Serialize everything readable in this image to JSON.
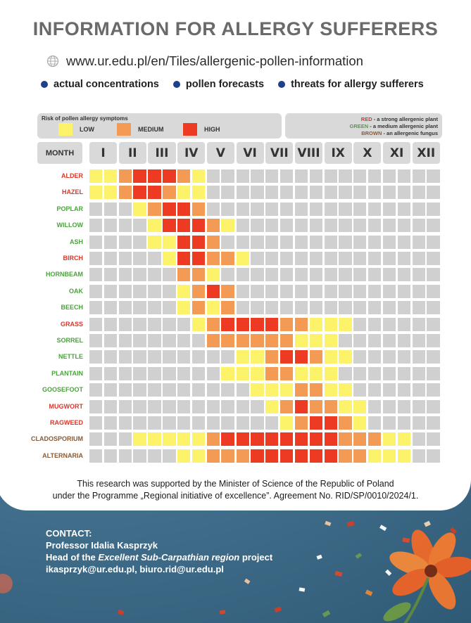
{
  "title": "INFORMATION FOR ALLERGY SUFFERERS",
  "url": "www.ur.edu.pl/en/Tiles/allergenic-pollen-information",
  "bullets": [
    "actual concentrations",
    "pollen forecasts",
    "threats for allergy sufferers"
  ],
  "legend": {
    "title": "Risk of pollen allergy symptoms",
    "low": "LOW",
    "medium": "MEDIUM",
    "high": "HIGH",
    "red_word": "RED",
    "red_desc": " - a strong allergenic plant",
    "green_word": "GREEN",
    "green_desc": " - a medium allergenic plant",
    "brown_word": "BROWN",
    "brown_desc": " - an allergenic fungus"
  },
  "colors": {
    "none": "#d0d0d0",
    "low": "#fdf36a",
    "medium": "#f39a54",
    "high": "#ec3b22",
    "red": "#d9372b",
    "green": "#4aa33c",
    "brown": "#8a5a35"
  },
  "month_header": "MONTH",
  "months": [
    "I",
    "II",
    "III",
    "IV",
    "V",
    "VI",
    "VII",
    "VIII",
    "IX",
    "X",
    "XI",
    "XII"
  ],
  "plants": [
    {
      "name": "ALDER",
      "type": "red",
      "levels": "LLMHHHMLNNNNNNNNNNNNNNNN"
    },
    {
      "name": "HAZEL",
      "type": "red",
      "levels": "LLMHHMLLNNNNNNNNNNNNNNNN"
    },
    {
      "name": "POPLAR",
      "type": "green",
      "levels": "NNNLMHHMNNNNNNNNNNNNNNNN"
    },
    {
      "name": "WILLOW",
      "type": "green",
      "levels": "NNNNLHHHMLNNNNNNNNNNNNNN"
    },
    {
      "name": "ASH",
      "type": "green",
      "levels": "NNNNLLHHMNNNNNNNNNNNNNNN"
    },
    {
      "name": "BIRCH",
      "type": "red",
      "levels": "NNNNNLHHMMLNNNNNNNNNNNNN"
    },
    {
      "name": "HORNBEAM",
      "type": "green",
      "levels": "NNNNNNMMLNNNNNNNNNNNNNNN"
    },
    {
      "name": "OAK",
      "type": "green",
      "levels": "NNNNNNLMHMNNNNNNNNNNNNNN"
    },
    {
      "name": "BEECH",
      "type": "green",
      "levels": "NNNNNNLMLMNNNNNNNNNNNNNN"
    },
    {
      "name": "GRASS",
      "type": "red",
      "levels": "NNNNNNNLMHHHHMMLLLNNNNNN"
    },
    {
      "name": "SORREL",
      "type": "green",
      "levels": "NNNNNNNNMMMMMMLLLNNNNNNN"
    },
    {
      "name": "NETTLE",
      "type": "green",
      "levels": "NNNNNNNNNNLLMHHMLLNNNNNN"
    },
    {
      "name": "PLANTAIN",
      "type": "green",
      "levels": "NNNNNNNNNLLLMMLLLNNNNNNN"
    },
    {
      "name": "GOOSEFOOT",
      "type": "green",
      "levels": "NNNNNNNNNNNLLLMMLLNNNNNN"
    },
    {
      "name": "MUGWORT",
      "type": "red",
      "levels": "NNNNNNNNNNNNLMHMMLLNNNNN"
    },
    {
      "name": "RAGWEED",
      "type": "red",
      "levels": "NNNNNNNNNNNNNLMHHMLNNNNN"
    },
    {
      "name": "CLADOSPORIUM",
      "type": "brown",
      "levels": "NNNLLLLLMHHHHHHHHMMMLLNN"
    },
    {
      "name": "ALTERNARIA",
      "type": "brown",
      "levels": "NNNNNNLLMMMHHHHHHMMLLLNN"
    }
  ],
  "support_line1": "This research was supported by the Minister of Science of the Republic of Poland",
  "support_line2": "under the Programme „Regional initiative of excellence”. Agreement No. RID/SP/0010/2024/1.",
  "contact": {
    "label": "CONTACT:",
    "name": "Professor Idalia Kasprzyk",
    "role_prefix": "Head of the ",
    "role_italic": "Excellent Sub-Carpathian region",
    "role_suffix": " project",
    "emails": "ikasprzyk@ur.edu.pl, biuro.rid@ur.edu.pl"
  }
}
